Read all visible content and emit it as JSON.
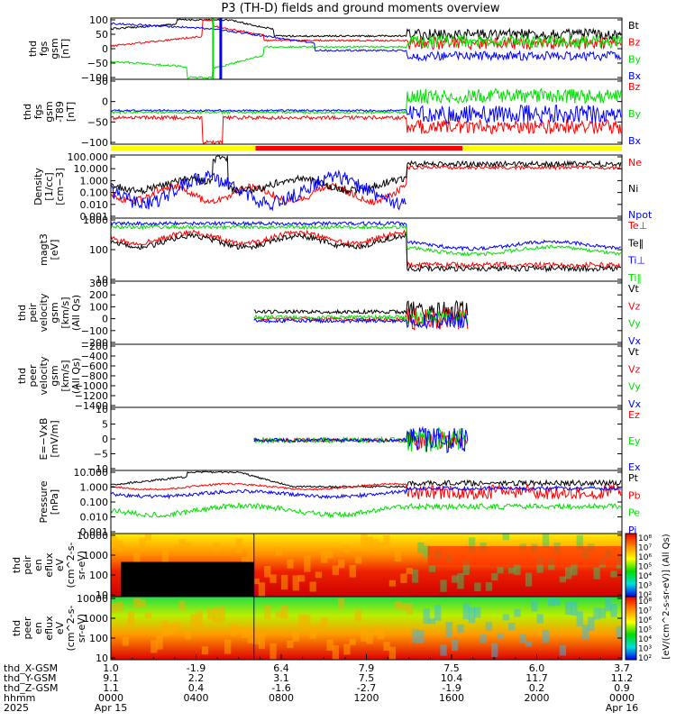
{
  "title": "P3 (TH-D) fields and ground moments overview",
  "colors": {
    "black": "#000000",
    "red": "#ff0000",
    "green": "#00e000",
    "blue": "#0000ff",
    "yellow": "#ffff00"
  },
  "chart_data": {
    "type": "line",
    "x_ticks": [
      "0000",
      "0400",
      "0800",
      "1200",
      "1600",
      "2000",
      "0000"
    ],
    "ephemeris": {
      "labels": [
        "thd_X-GSM",
        "thd_Y-GSM",
        "thd_Z-GSM",
        "hhmm",
        "2025"
      ],
      "rows": [
        [
          "1.0",
          "-1.9",
          "6.4",
          "7.9",
          "7.5",
          "6.0",
          "3.7"
        ],
        [
          "9.1",
          "2.2",
          "3.1",
          "7.5",
          "10.4",
          "11.7",
          "11.2"
        ],
        [
          "1.1",
          "0.4",
          "-1.6",
          "-2.7",
          "-1.9",
          "0.2",
          "0.9"
        ],
        [
          "0000",
          "0400",
          "0800",
          "1200",
          "1600",
          "2000",
          "0000"
        ]
      ],
      "dates": [
        "Apr 15",
        "Apr 16"
      ]
    },
    "panels": [
      {
        "id": "fgs",
        "ylabel": [
          "thd",
          "fgs",
          "gsm",
          "[nT]"
        ],
        "ticks": [
          "100",
          "50",
          "0",
          "−50",
          "−100"
        ],
        "legend": [
          {
            "t": "Bt",
            "c": "black"
          },
          {
            "t": "Bz",
            "c": "red"
          },
          {
            "t": "By",
            "c": "green"
          },
          {
            "t": "Bx",
            "c": "blue"
          }
        ]
      },
      {
        "id": "fgs2",
        "ylabel": [
          "thd",
          "fgs",
          "gsm",
          "-T89",
          "[nT]"
        ],
        "ticks": [
          "50",
          "0",
          "−50",
          "−100"
        ],
        "legend": [
          {
            "t": "Bz",
            "c": "red"
          },
          {
            "t": "By",
            "c": "green"
          },
          {
            "t": "Bx",
            "c": "blue"
          }
        ]
      },
      {
        "id": "density",
        "ylabel": [
          "Density",
          "[1/cc]",
          "[cm−3]"
        ],
        "ticks": [
          "100.000",
          "10.000",
          "1.000",
          "0.100",
          "0.010",
          "0.001"
        ],
        "legend": [
          {
            "t": "Ne",
            "c": "red"
          },
          {
            "t": "Ni",
            "c": "black"
          },
          {
            "t": "Npot",
            "c": "blue"
          }
        ]
      },
      {
        "id": "temp",
        "ylabel": [
          "magt3",
          "[eV]"
        ],
        "ticks": [
          "1000",
          "100",
          "10"
        ],
        "legend": [
          {
            "t": "Te⊥",
            "c": "red"
          },
          {
            "t": "Te‖",
            "c": "black"
          },
          {
            "t": "Ti⊥",
            "c": "blue"
          },
          {
            "t": "Ti‖",
            "c": "green"
          }
        ]
      },
      {
        "id": "peir",
        "ylabel": [
          "thd",
          "peir",
          "velocity",
          "gsm",
          "[km/s]",
          "(All Qs)"
        ],
        "ticks": [
          "300",
          "200",
          "100",
          "0",
          "−100",
          "−200"
        ],
        "legend": [
          {
            "t": "Vt",
            "c": "black"
          },
          {
            "t": "Vz",
            "c": "red"
          },
          {
            "t": "Vy",
            "c": "green"
          },
          {
            "t": "Vx",
            "c": "blue"
          }
        ]
      },
      {
        "id": "peer",
        "ylabel": [
          "thd",
          "peer",
          "velocity",
          "gsm",
          "[km/s]",
          "(All Qs)"
        ],
        "ticks": [
          "−200",
          "−400",
          "−600",
          "−800",
          "−1000",
          "−1200",
          "−1400"
        ],
        "legend": [
          {
            "t": "Vt",
            "c": "black"
          },
          {
            "t": "Vz",
            "c": "red"
          },
          {
            "t": "Vy",
            "c": "green"
          },
          {
            "t": "Vx",
            "c": "blue"
          }
        ]
      },
      {
        "id": "efield",
        "ylabel": [
          "E=−VxB",
          "[mV/m]"
        ],
        "ticks": [
          "10",
          "5",
          "0",
          "−5",
          "−10"
        ],
        "legend": [
          {
            "t": "Ez",
            "c": "red"
          },
          {
            "t": "Ey",
            "c": "green"
          },
          {
            "t": "Ex",
            "c": "blue"
          }
        ]
      },
      {
        "id": "pressure",
        "ylabel": [
          "Pressure",
          "[nPa]"
        ],
        "ticks": [
          "10.000",
          "1.000",
          "0.100",
          "0.010",
          "0.001"
        ],
        "legend": [
          {
            "t": "Pt",
            "c": "black"
          },
          {
            "t": "Pb",
            "c": "red"
          },
          {
            "t": "Pe",
            "c": "green"
          },
          {
            "t": "Pi",
            "c": "blue"
          }
        ]
      },
      {
        "id": "ionspec",
        "ylabel": [
          "thd",
          "peir",
          "en",
          "eflux",
          "eV",
          "(cm^2-s-",
          "sr-eV)"
        ],
        "ticks": [
          "10000",
          "1000",
          "100",
          "10"
        ]
      },
      {
        "id": "espec",
        "ylabel": [
          "thd",
          "peer",
          "en",
          "eflux",
          "eV",
          "(cm^2-s-",
          "sr-eV)"
        ],
        "ticks": [
          "10000",
          "1000",
          "100",
          "10"
        ]
      }
    ],
    "colorbar": {
      "ticks": [
        "10⁸",
        "10⁷",
        "10⁶",
        "10⁵",
        "10⁴",
        "10³",
        "10²",
        "10⁸",
        "10⁷",
        "10⁶",
        "10⁵",
        "10⁴",
        "10³",
        "10²"
      ],
      "label": "[eV/(cm^2-s-sr-eV)] (All Qs)"
    }
  }
}
